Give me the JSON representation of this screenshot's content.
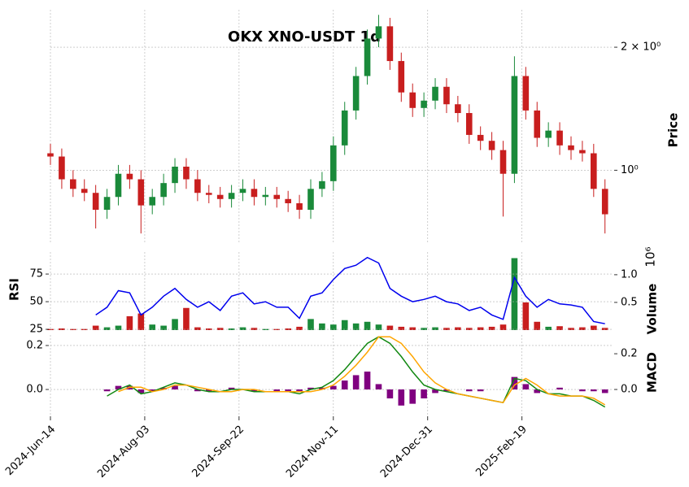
{
  "chart_data": {
    "type": "candlestick",
    "title": "OKX XNO-USDT 1d",
    "x": [
      "2024-06-14",
      "2024-06-20",
      "2024-06-26",
      "2024-07-02",
      "2024-07-08",
      "2024-07-14",
      "2024-07-20",
      "2024-07-26",
      "2024-08-01",
      "2024-08-07",
      "2024-08-13",
      "2024-08-19",
      "2024-08-25",
      "2024-08-31",
      "2024-09-06",
      "2024-09-12",
      "2024-09-18",
      "2024-09-24",
      "2024-09-30",
      "2024-10-06",
      "2024-10-12",
      "2024-10-18",
      "2024-10-24",
      "2024-10-30",
      "2024-11-05",
      "2024-11-11",
      "2024-11-17",
      "2024-11-23",
      "2024-11-29",
      "2024-12-05",
      "2024-12-11",
      "2024-12-17",
      "2024-12-23",
      "2024-12-29",
      "2025-01-04",
      "2025-01-10",
      "2025-01-16",
      "2025-01-22",
      "2025-01-28",
      "2025-02-03",
      "2025-02-09",
      "2025-02-15",
      "2025-02-21",
      "2025-02-27",
      "2025-03-05",
      "2025-03-11",
      "2025-03-17",
      "2025-03-23",
      "2025-03-29",
      "2025-04-04"
    ],
    "xlim": [
      "2024-06-14",
      "2025-04-08"
    ],
    "xticks": [
      {
        "value": "2024-06-14",
        "label": "2024-Jun-14"
      },
      {
        "value": "2024-08-03",
        "label": "2024-Aug-03"
      },
      {
        "value": "2024-09-22",
        "label": "2024-Sep-22"
      },
      {
        "value": "2024-11-11",
        "label": "2024-Nov-11"
      },
      {
        "value": "2024-12-31",
        "label": "2024-Dec-31"
      },
      {
        "value": "2025-02-19",
        "label": "2025-Feb-19"
      }
    ],
    "grid": true,
    "price": {
      "label": "Price",
      "log_scale": true,
      "ylim": [
        0.66,
        2.47
      ],
      "yticks": [
        {
          "value": 2,
          "label": "2 × 10⁰"
        },
        {
          "value": 1,
          "label": "10⁰"
        }
      ],
      "up_color": "#1a8a3a",
      "down_color": "#c81e1e",
      "open": [
        1.1,
        1.08,
        0.95,
        0.9,
        0.88,
        0.8,
        0.86,
        0.98,
        0.95,
        0.82,
        0.86,
        0.93,
        1.02,
        0.95,
        0.88,
        0.87,
        0.85,
        0.88,
        0.9,
        0.86,
        0.87,
        0.85,
        0.83,
        0.8,
        0.9,
        0.94,
        1.15,
        1.4,
        1.7,
        2.1,
        2.25,
        1.85,
        1.55,
        1.42,
        1.48,
        1.6,
        1.45,
        1.38,
        1.22,
        1.18,
        1.12,
        0.98,
        1.7,
        1.4,
        1.2,
        1.25,
        1.15,
        1.12,
        1.1,
        0.9
      ],
      "high": [
        1.16,
        1.13,
        1.0,
        0.95,
        0.92,
        0.9,
        1.03,
        1.03,
        1.0,
        0.9,
        0.98,
        1.07,
        1.07,
        1.0,
        0.92,
        0.91,
        0.92,
        0.95,
        0.95,
        0.91,
        0.91,
        0.89,
        0.87,
        0.95,
        0.99,
        1.21,
        1.47,
        1.79,
        2.21,
        2.4,
        2.36,
        1.94,
        1.63,
        1.55,
        1.68,
        1.68,
        1.52,
        1.45,
        1.28,
        1.24,
        1.18,
        1.9,
        1.79,
        1.47,
        1.31,
        1.31,
        1.21,
        1.18,
        1.16,
        0.95
      ],
      "low": [
        1.03,
        0.9,
        0.86,
        0.84,
        0.72,
        0.76,
        0.82,
        0.9,
        0.7,
        0.78,
        0.82,
        0.88,
        0.9,
        0.84,
        0.83,
        0.81,
        0.81,
        0.84,
        0.82,
        0.82,
        0.81,
        0.79,
        0.76,
        0.76,
        0.86,
        0.89,
        1.09,
        1.33,
        1.62,
        2.0,
        1.76,
        1.47,
        1.35,
        1.35,
        1.41,
        1.38,
        1.31,
        1.16,
        1.12,
        1.06,
        0.77,
        0.93,
        1.33,
        1.14,
        1.14,
        1.09,
        1.06,
        1.05,
        0.86,
        0.7
      ],
      "close": [
        1.08,
        0.95,
        0.9,
        0.88,
        0.8,
        0.86,
        0.98,
        0.95,
        0.82,
        0.86,
        0.93,
        1.02,
        0.95,
        0.88,
        0.87,
        0.85,
        0.88,
        0.9,
        0.86,
        0.87,
        0.85,
        0.83,
        0.8,
        0.9,
        0.94,
        1.15,
        1.4,
        1.7,
        2.1,
        2.25,
        1.85,
        1.55,
        1.42,
        1.48,
        1.6,
        1.45,
        1.38,
        1.22,
        1.18,
        1.12,
        0.98,
        1.7,
        1.4,
        1.2,
        1.25,
        1.15,
        1.12,
        1.1,
        0.9,
        0.78
      ]
    },
    "volume": {
      "label": "Volume",
      "offset_label": "10⁶",
      "ylim": [
        0,
        1.41
      ],
      "yticks": [
        0.5,
        {
          "value": 1,
          "label": "1.0"
        }
      ],
      "values": [
        0.02,
        0.03,
        0.02,
        0.02,
        0.08,
        0.05,
        0.08,
        0.25,
        0.3,
        0.1,
        0.08,
        0.2,
        0.4,
        0.05,
        0.03,
        0.04,
        0.03,
        0.05,
        0.04,
        0.02,
        0.02,
        0.03,
        0.06,
        0.2,
        0.12,
        0.1,
        0.18,
        0.12,
        0.15,
        0.1,
        0.08,
        0.06,
        0.05,
        0.04,
        0.05,
        0.04,
        0.05,
        0.04,
        0.05,
        0.06,
        0.1,
        1.3,
        0.5,
        0.15,
        0.06,
        0.07,
        0.04,
        0.05,
        0.08,
        0.04
      ]
    },
    "rsi": {
      "label": "RSI",
      "color": "#0000ee",
      "ylim": [
        24.3,
        94.9
      ],
      "yticks": [
        25,
        50,
        75
      ],
      "values": [
        null,
        null,
        null,
        null,
        38,
        45,
        60,
        58,
        38,
        45,
        55,
        62,
        52,
        45,
        50,
        42,
        55,
        58,
        48,
        50,
        45,
        45,
        35,
        55,
        58,
        70,
        80,
        83,
        90,
        85,
        62,
        55,
        50,
        52,
        55,
        50,
        48,
        42,
        45,
        38,
        34,
        72,
        55,
        45,
        52,
        48,
        47,
        45,
        32,
        30
      ]
    },
    "macd": {
      "label": "MACD",
      "ylim": [
        -0.122,
        0.248
      ],
      "yticks": [
        {
          "value": 0,
          "label": "0.0"
        },
        0.2
      ],
      "y2lim": [
        -0.15,
        0.305
      ],
      "y2ticks": [
        {
          "value": 0,
          "label": "0.0"
        },
        0.2
      ],
      "macd_line": {
        "color": "#118811",
        "values": [
          null,
          null,
          null,
          null,
          null,
          -0.03,
          0.0,
          0.02,
          -0.02,
          -0.01,
          0.01,
          0.03,
          0.02,
          0.0,
          -0.01,
          -0.01,
          0.0,
          0.0,
          -0.01,
          -0.01,
          -0.01,
          -0.01,
          -0.02,
          0.0,
          0.01,
          0.04,
          0.09,
          0.15,
          0.21,
          0.24,
          0.21,
          0.15,
          0.08,
          0.02,
          0.0,
          -0.01,
          -0.02,
          -0.03,
          -0.04,
          -0.05,
          -0.06,
          0.05,
          0.04,
          0.0,
          -0.02,
          -0.02,
          -0.03,
          -0.03,
          -0.05,
          -0.08
        ]
      },
      "signal_line": {
        "color": "#ffa500",
        "values": [
          null,
          null,
          null,
          null,
          null,
          null,
          -0.01,
          0.01,
          0.01,
          -0.01,
          0.0,
          0.02,
          0.02,
          0.01,
          0.0,
          -0.01,
          -0.01,
          0.0,
          0.0,
          -0.01,
          -0.01,
          -0.01,
          -0.01,
          -0.01,
          0.0,
          0.02,
          0.06,
          0.11,
          0.17,
          0.24,
          0.24,
          0.21,
          0.15,
          0.08,
          0.03,
          0.0,
          -0.02,
          -0.03,
          -0.04,
          -0.05,
          -0.06,
          0.02,
          0.05,
          0.02,
          -0.02,
          -0.03,
          -0.03,
          -0.03,
          -0.04,
          -0.07
        ]
      },
      "histogram": {
        "axis": "y2",
        "color": "#800080",
        "values": [
          null,
          null,
          null,
          null,
          null,
          -0.01,
          0.02,
          0.02,
          -0.02,
          -0.01,
          0.01,
          0.02,
          0.0,
          -0.01,
          -0.01,
          0.0,
          0.01,
          0.0,
          -0.01,
          0.0,
          -0.01,
          -0.01,
          -0.01,
          0.01,
          0.01,
          0.02,
          0.05,
          0.08,
          0.1,
          0.03,
          -0.05,
          -0.09,
          -0.08,
          -0.05,
          -0.02,
          -0.01,
          0.0,
          -0.01,
          -0.01,
          0.0,
          0.0,
          0.07,
          0.03,
          -0.02,
          0.0,
          0.01,
          0.0,
          -0.01,
          -0.01,
          -0.02
        ]
      }
    }
  }
}
